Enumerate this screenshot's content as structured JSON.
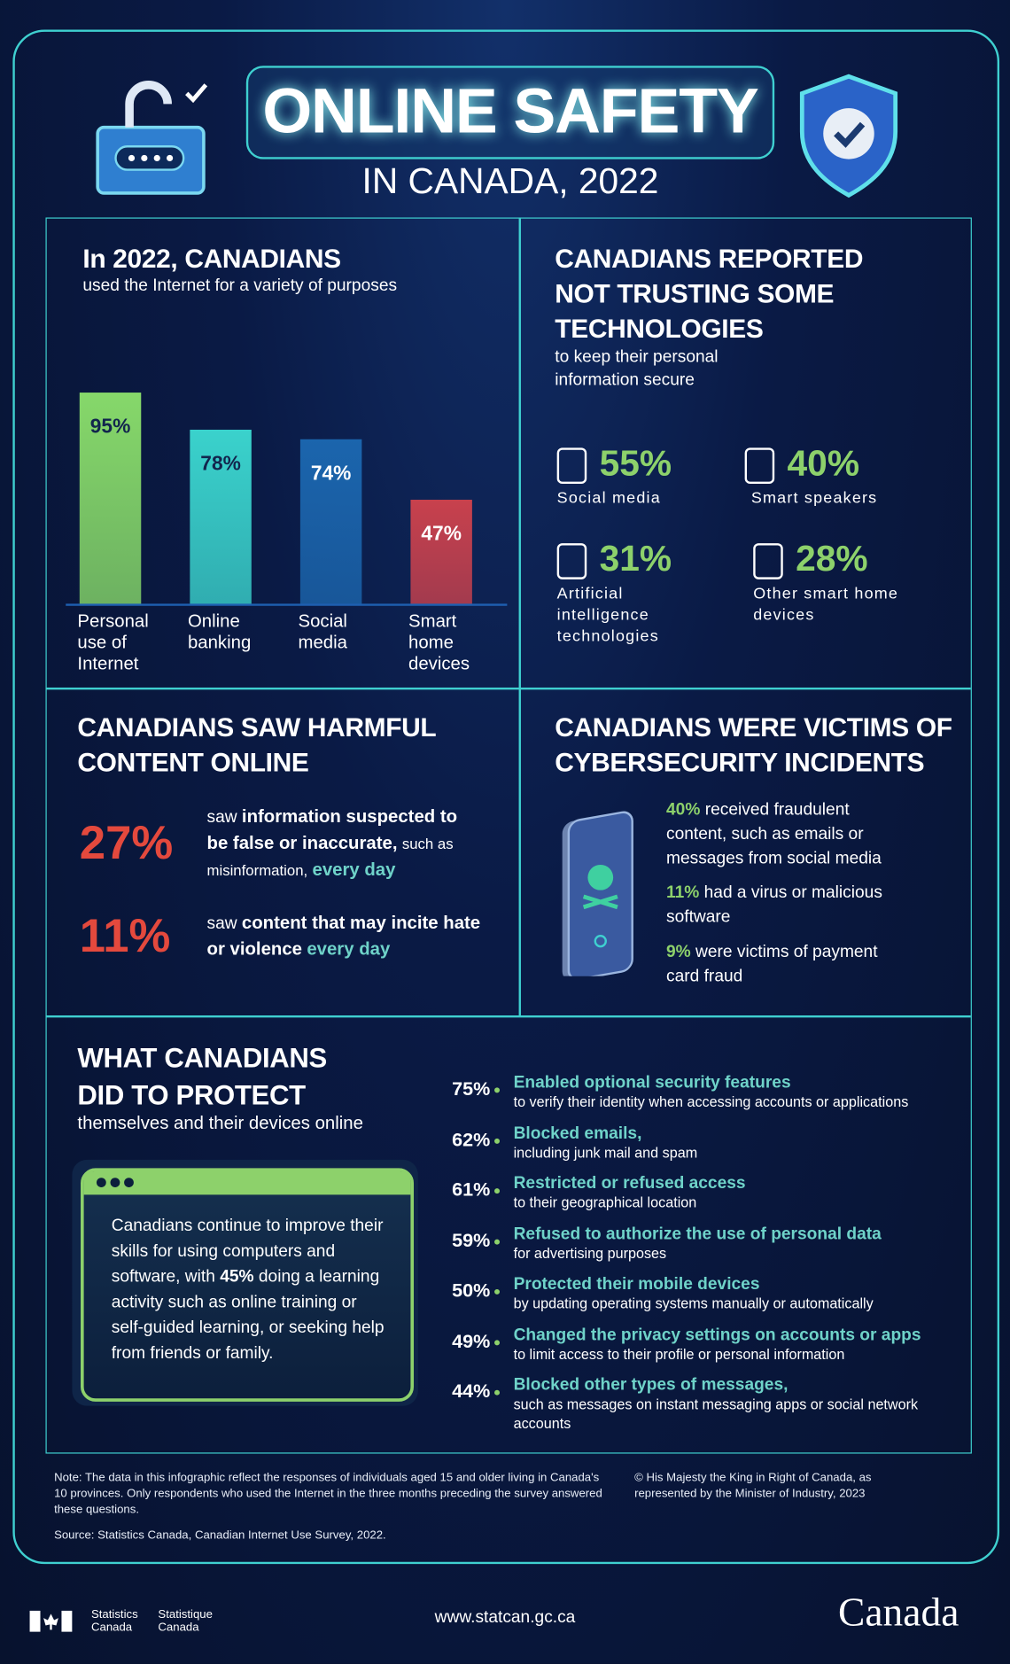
{
  "header": {
    "title": "ONLINE SAFETY",
    "subtitle": "IN CANADA, 2022"
  },
  "chart_data": {
    "type": "bar",
    "title": "In 2022, CANADIANS",
    "subtitle": "used the Internet for a variety of purposes",
    "categories": [
      "Personal use of Internet",
      "Online banking",
      "Social media",
      "Smart home devices"
    ],
    "values": [
      95,
      78,
      74,
      47
    ],
    "value_labels": [
      "95%",
      "78%",
      "74%",
      "47%"
    ],
    "colors": [
      "#86d86a",
      "#3ad2cc",
      "#1b65ad",
      "#c8414d"
    ],
    "ylim": [
      0,
      100
    ]
  },
  "trust": {
    "title": "CANADIANS REPORTED NOT TRUSTING SOME TECHNOLOGIES",
    "subtitle": "to keep their personal information secure",
    "items": [
      {
        "value": "55%",
        "label": "Social media"
      },
      {
        "value": "40%",
        "label": "Smart speakers"
      },
      {
        "value": "31%",
        "label": "Artificial intelligence technologies"
      },
      {
        "value": "28%",
        "label": "Other smart home devices"
      }
    ]
  },
  "harmful": {
    "title": "CANADIANS SAW HARMFUL CONTENT ONLINE",
    "items": [
      {
        "value": "27%",
        "lead": "saw",
        "bold": "information suspected to be false or inaccurate,",
        "rest": "such as misinformation,",
        "emphasis": "every day"
      },
      {
        "value": "11%",
        "lead": "saw",
        "bold": "content that may incite hate or violence",
        "emphasis": "every day"
      }
    ]
  },
  "victims": {
    "title": "CANADIANS WERE VICTIMS OF CYBERSECURITY INCIDENTS",
    "items": [
      {
        "value": "40%",
        "text": "received fraudulent content, such as emails or messages from social media"
      },
      {
        "value": "11%",
        "text": "had a virus or malicious software"
      },
      {
        "value": "9%",
        "text": "were victims of payment card fraud"
      }
    ]
  },
  "protect": {
    "title": "WHAT CANADIANS DID TO PROTECT",
    "subtitle": "themselves and their devices online",
    "callout": {
      "before": "Canadians continue to improve their skills for using computers and software, with",
      "value": "45%",
      "after": "doing a learning activity such as online training or self-guided learning, or seeking help from friends or family."
    },
    "items": [
      {
        "value": "75%",
        "heading": "Enabled optional security features",
        "detail": "to verify their identity when accessing accounts or applications"
      },
      {
        "value": "62%",
        "heading": "Blocked emails,",
        "detail": "including junk mail and spam"
      },
      {
        "value": "61%",
        "heading": "Restricted or refused access",
        "detail": "to their geographical location"
      },
      {
        "value": "59%",
        "heading": "Refused to authorize the use of personal data",
        "detail": "for advertising purposes"
      },
      {
        "value": "50%",
        "heading": "Protected their mobile devices",
        "detail": "by updating operating systems manually or automatically"
      },
      {
        "value": "49%",
        "heading": "Changed the privacy settings on accounts or apps",
        "detail": "to limit access to their profile or personal information"
      },
      {
        "value": "44%",
        "heading": "Blocked other types of messages,",
        "detail": "such as messages on instant messaging apps or social network accounts"
      }
    ]
  },
  "footer": {
    "note": "Note: The data in this infographic reflect the responses of individuals aged 15 and older living in Canada's 10 provinces. Only respondents who used the Internet in the three months preceding the survey answered these questions.",
    "source": "Source: Statistics Canada, Canadian Internet Use Survey, 2022.",
    "copyright": "© His Majesty the King in Right of Canada, as represented by the Minister of Industry, 2023",
    "agency_en": "Statistics Canada",
    "agency_fr": "Statistique Canada",
    "url": "www.statcan.gc.ca",
    "wordmark": "Canada"
  }
}
